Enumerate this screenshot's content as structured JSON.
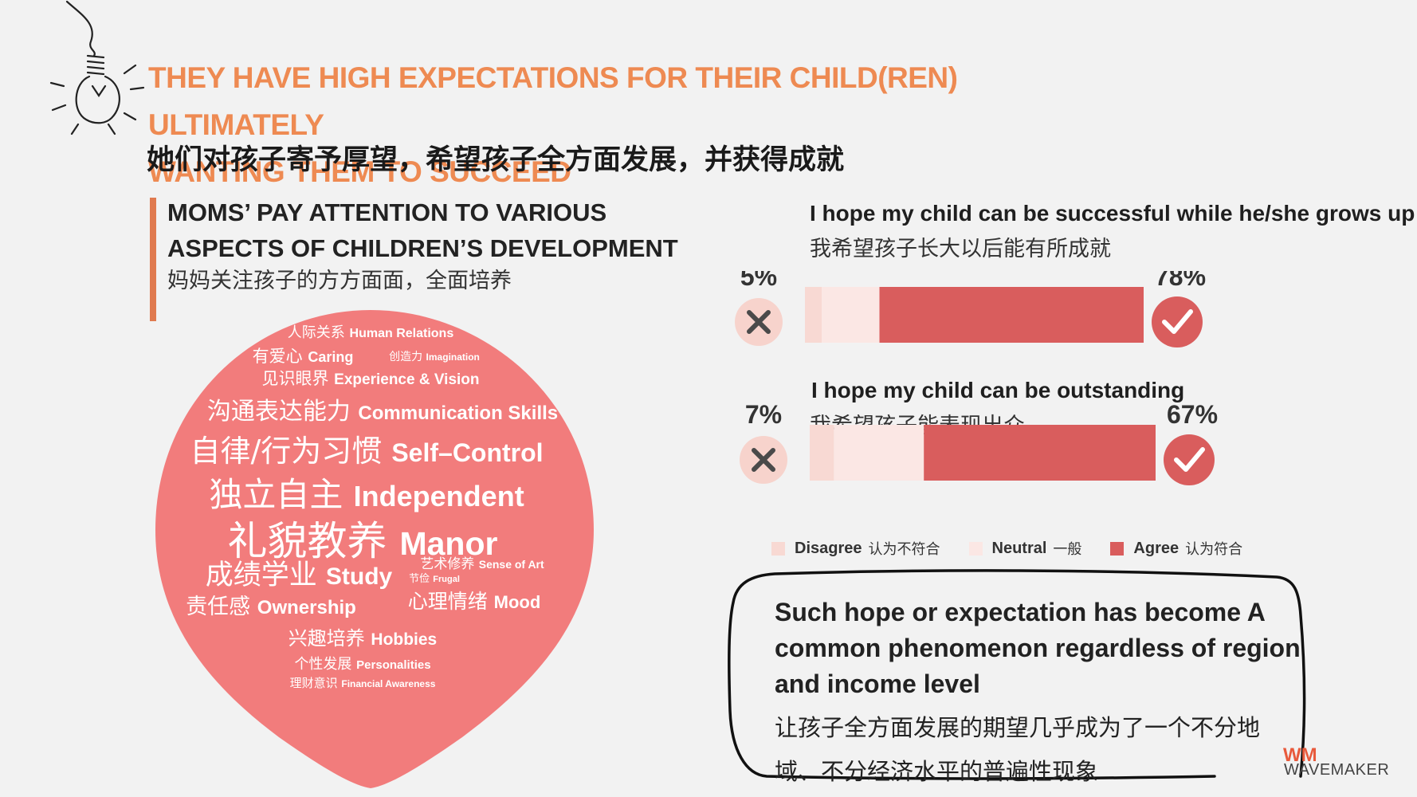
{
  "title": {
    "line1": "THEY HAVE HIGH EXPECTATIONS FOR THEIR CHILD(REN) ULTIMATELY",
    "line2": "WANTING THEM TO SUCCEED",
    "cn": "她们对孩子寄予厚望，希望孩子全方面发展，并获得成就"
  },
  "section": {
    "line1": "MOMS’ PAY ATTENTION TO VARIOUS",
    "line2": "ASPECTS OF CHILDREN’S DEVELOPMENT",
    "cn": "妈妈关注孩子的方方面面，全面培养"
  },
  "word_cloud": [
    {
      "cn": "人际关系",
      "en": "Human Relations"
    },
    {
      "cn": "有爱心",
      "en": "Caring"
    },
    {
      "cn": "创造力",
      "en": "Imagination"
    },
    {
      "cn": "见识眼界",
      "en": "Experience & Vision"
    },
    {
      "cn": "沟通表达能力",
      "en": "Communication Skills"
    },
    {
      "cn": "自律/行为习惯",
      "en": "Self–Control"
    },
    {
      "cn": "独立自主",
      "en": "Independent"
    },
    {
      "cn": "礼貌教养",
      "en": "Manor"
    },
    {
      "cn": "成绩学业",
      "en": "Study"
    },
    {
      "cn": "艺术修养",
      "en": "Sense of Art"
    },
    {
      "cn": "节俭",
      "en": "Frugal"
    },
    {
      "cn": "责任感",
      "en": "Ownership"
    },
    {
      "cn": "心理情绪",
      "en": "Mood"
    },
    {
      "cn": "兴趣培养",
      "en": "Hobbies"
    },
    {
      "cn": "个性发展",
      "en": "Personalities"
    },
    {
      "cn": "理财意识",
      "en": "Financial Awareness"
    }
  ],
  "chart_data": {
    "type": "bar",
    "stacked": true,
    "orientation": "horizontal",
    "categories": [
      "I hope my child can be successful while he/she grows up",
      "I hope my child can be outstanding"
    ],
    "categories_cn": [
      "我希望孩子长大以后能有所成就",
      "我希望孩子能表现出众"
    ],
    "series": [
      {
        "name": "Disagree",
        "name_cn": "认为不符合",
        "values": [
          5,
          7
        ],
        "color": "#f8d9d3"
      },
      {
        "name": "Neutral",
        "name_cn": "一般",
        "values": [
          17,
          26
        ],
        "color": "#fbe7e4"
      },
      {
        "name": "Agree",
        "name_cn": "认为符合",
        "values": [
          78,
          67
        ],
        "color": "#d95d5d"
      }
    ],
    "data_labels": [
      {
        "disagree": "5%",
        "agree": "78%"
      },
      {
        "disagree": "7%",
        "agree": "67%"
      }
    ],
    "legend_position": "bottom"
  },
  "callout": {
    "en": "Such hope or expectation has become A common phenomenon regardless of region and income level",
    "cn": "让孩子全方面发展的期望几乎成为了一个不分地域、不分经济水平的普遍性现象"
  },
  "brand": {
    "logo": "WM",
    "name": "WAVEMAKER"
  },
  "colors": {
    "title_orange": "#ee8a52",
    "cloud_pink": "#f27c7c",
    "agree_red": "#d95d5d",
    "icon_bg": "#f7d3cc"
  }
}
